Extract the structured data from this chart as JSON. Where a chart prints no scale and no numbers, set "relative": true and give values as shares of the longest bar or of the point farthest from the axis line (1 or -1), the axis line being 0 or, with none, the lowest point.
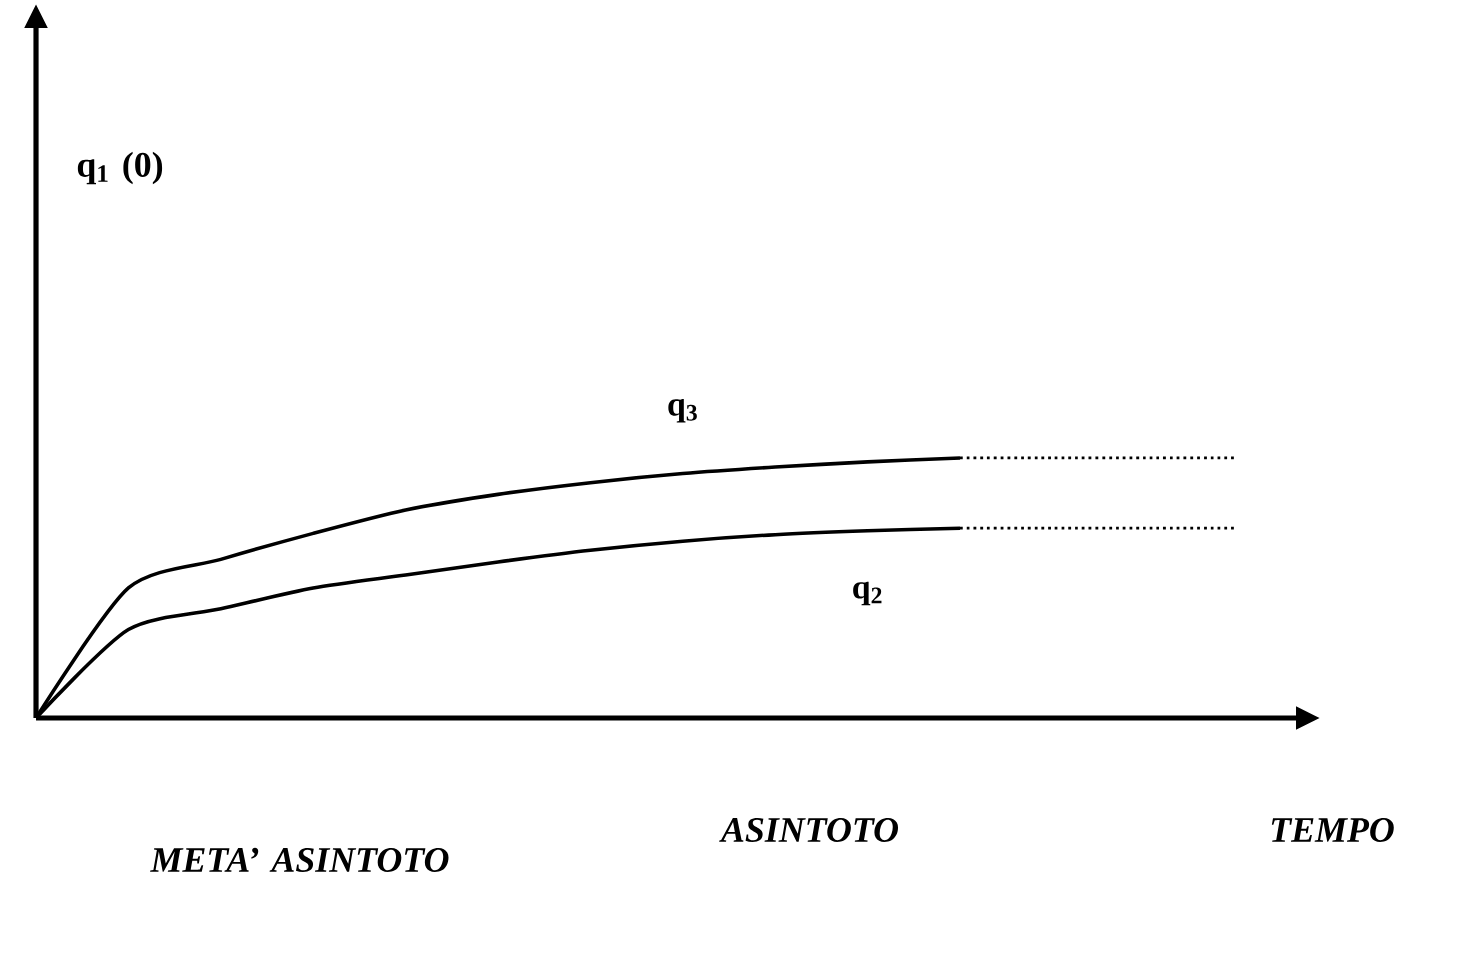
{
  "chart_data": {
    "type": "line",
    "relative": true,
    "categories": [
      null,
      null,
      null,
      null,
      null,
      null,
      null,
      null,
      null,
      null,
      null,
      null,
      null,
      null
    ],
    "series": [
      {
        "name": "q$_{3}$",
        "color": "#000000",
        "line_style": "solid",
        "values": [
          0,
          0.5,
          0.61,
          0.71,
          0.8,
          0.86,
          0.905,
          0.94,
          0.965,
          0.985,
          1.0,
          null,
          null,
          null
        ]
      },
      {
        "color": "#000000",
        "line_style": "dotted",
        "values": [
          null,
          null,
          null,
          null,
          null,
          null,
          null,
          null,
          null,
          null,
          1.0,
          1.0,
          1.0,
          1.0
        ]
      },
      {
        "name": "q$_{2}$",
        "color": "#000000",
        "line_style": "solid",
        "values": [
          0,
          0.34,
          0.42,
          0.5,
          0.55,
          0.6,
          0.645,
          0.68,
          0.705,
          0.72,
          0.73,
          null,
          null,
          null
        ]
      },
      {
        "color": "#000000",
        "line_style": "dotted",
        "values": [
          null,
          null,
          null,
          null,
          null,
          null,
          null,
          null,
          null,
          null,
          0.73,
          0.73,
          0.73,
          0.73
        ]
      }
    ],
    "annotations": [
      "q$_{1}$ (0)",
      "META’ ASINTOTO",
      "ASINTOTO",
      "TEMPO"
    ]
  }
}
